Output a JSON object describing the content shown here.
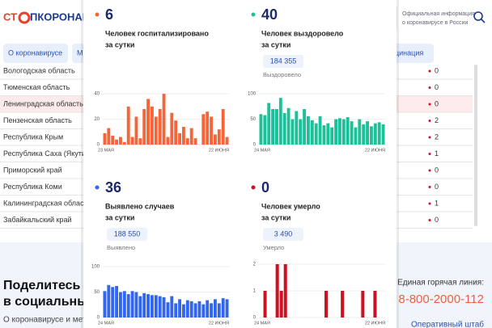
{
  "header": {
    "logo_left": "СТ",
    "logo_right": "ПКОРОНАВИ",
    "info": [
      "Официальная информация",
      "о коронавирусе в России"
    ]
  },
  "nav": [
    "О коронавирусе",
    "М",
    "цинация"
  ],
  "table": {
    "rows": [
      [
        "Вологодская область",
        "0"
      ],
      [
        "Тюменская область",
        "0"
      ],
      [
        "Ленинградская область",
        "0"
      ],
      [
        "Пензенская область",
        "2"
      ],
      [
        "Республика Крым",
        "2"
      ],
      [
        "Республика Саха (Якутия)",
        "1"
      ],
      [
        "Приморский край",
        "0"
      ],
      [
        "Республика Коми",
        "0"
      ],
      [
        "Калининградская область",
        "1"
      ],
      [
        "Забайкальский край",
        "0"
      ]
    ]
  },
  "footer": {
    "share": [
      "Поделитесь н",
      "в социальны"
    ],
    "text": "О коронавирусе и мето",
    "hotline_label": "Единая горячая линия:",
    "hotline": "8-800-2000-112",
    "hq": "Оперативный штаб"
  },
  "panels": [
    {
      "value": 6,
      "caption": [
        "Человек госпитализировано",
        "за сутки"
      ],
      "color": "#f4663a",
      "chart": {
        "type": "bar",
        "values": [
          9,
          13,
          7,
          4,
          6,
          2,
          30,
          6,
          22,
          5,
          28,
          36,
          30,
          22,
          28,
          40,
          6,
          25,
          19,
          9,
          14,
          5,
          13,
          5,
          0,
          24,
          26,
          22,
          8,
          12,
          28,
          6
        ],
        "ylim": [
          0,
          42
        ],
        "yticks": [
          0,
          20,
          40
        ],
        "x_labels": [
          "23 МАЯ",
          "22 ИЮНЯ"
        ]
      }
    },
    {
      "value": 40,
      "caption": [
        "Человек выздоровело",
        "за сутки"
      ],
      "total": "184 355",
      "total_label": "Выздоровело",
      "color": "#1cc19a",
      "chart": {
        "type": "bar",
        "values": [
          60,
          58,
          82,
          70,
          70,
          92,
          62,
          72,
          50,
          66,
          50,
          70,
          56,
          48,
          42,
          56,
          38,
          42,
          34,
          50,
          52,
          50,
          54,
          46,
          34,
          50,
          40,
          46,
          36,
          42,
          44,
          40
        ],
        "ylim": [
          0,
          105
        ],
        "yticks": [
          0,
          50,
          100
        ],
        "x_labels": [
          "24 МАЯ",
          "22 ИЮНЯ"
        ]
      }
    },
    {
      "value": 36,
      "caption": [
        "Выявлено случаев",
        "за сутки"
      ],
      "total": "188 550",
      "total_label": "Выявлено",
      "color": "#3366ee",
      "chart": {
        "type": "bar",
        "values": [
          52,
          64,
          60,
          62,
          50,
          52,
          46,
          52,
          50,
          42,
          48,
          46,
          44,
          44,
          42,
          40,
          30,
          42,
          28,
          36,
          26,
          34,
          32,
          28,
          32,
          26,
          34,
          28,
          36,
          28,
          38,
          36
        ],
        "ylim": [
          0,
          105
        ],
        "yticks": [
          0,
          50,
          100
        ],
        "x_labels": [
          "24 МАЯ",
          "22 ИЮНЯ"
        ]
      }
    },
    {
      "value": 0,
      "caption": [
        "Человек умерло",
        "за сутки"
      ],
      "total": "3 490",
      "total_label": "Умерло",
      "color": "#cc1122",
      "chart": {
        "type": "bar",
        "values": [
          0,
          1,
          0,
          0,
          2,
          1,
          2,
          0,
          0,
          0,
          0,
          0,
          0,
          0,
          0,
          0,
          1,
          0,
          0,
          0,
          1,
          0,
          0,
          0,
          0,
          1,
          0,
          0,
          1,
          0,
          0
        ],
        "ylim": [
          0,
          2
        ],
        "yticks": [
          0,
          1,
          2
        ],
        "x_labels": [
          "24 МАЯ",
          "22 ИЮНЯ"
        ]
      }
    }
  ]
}
